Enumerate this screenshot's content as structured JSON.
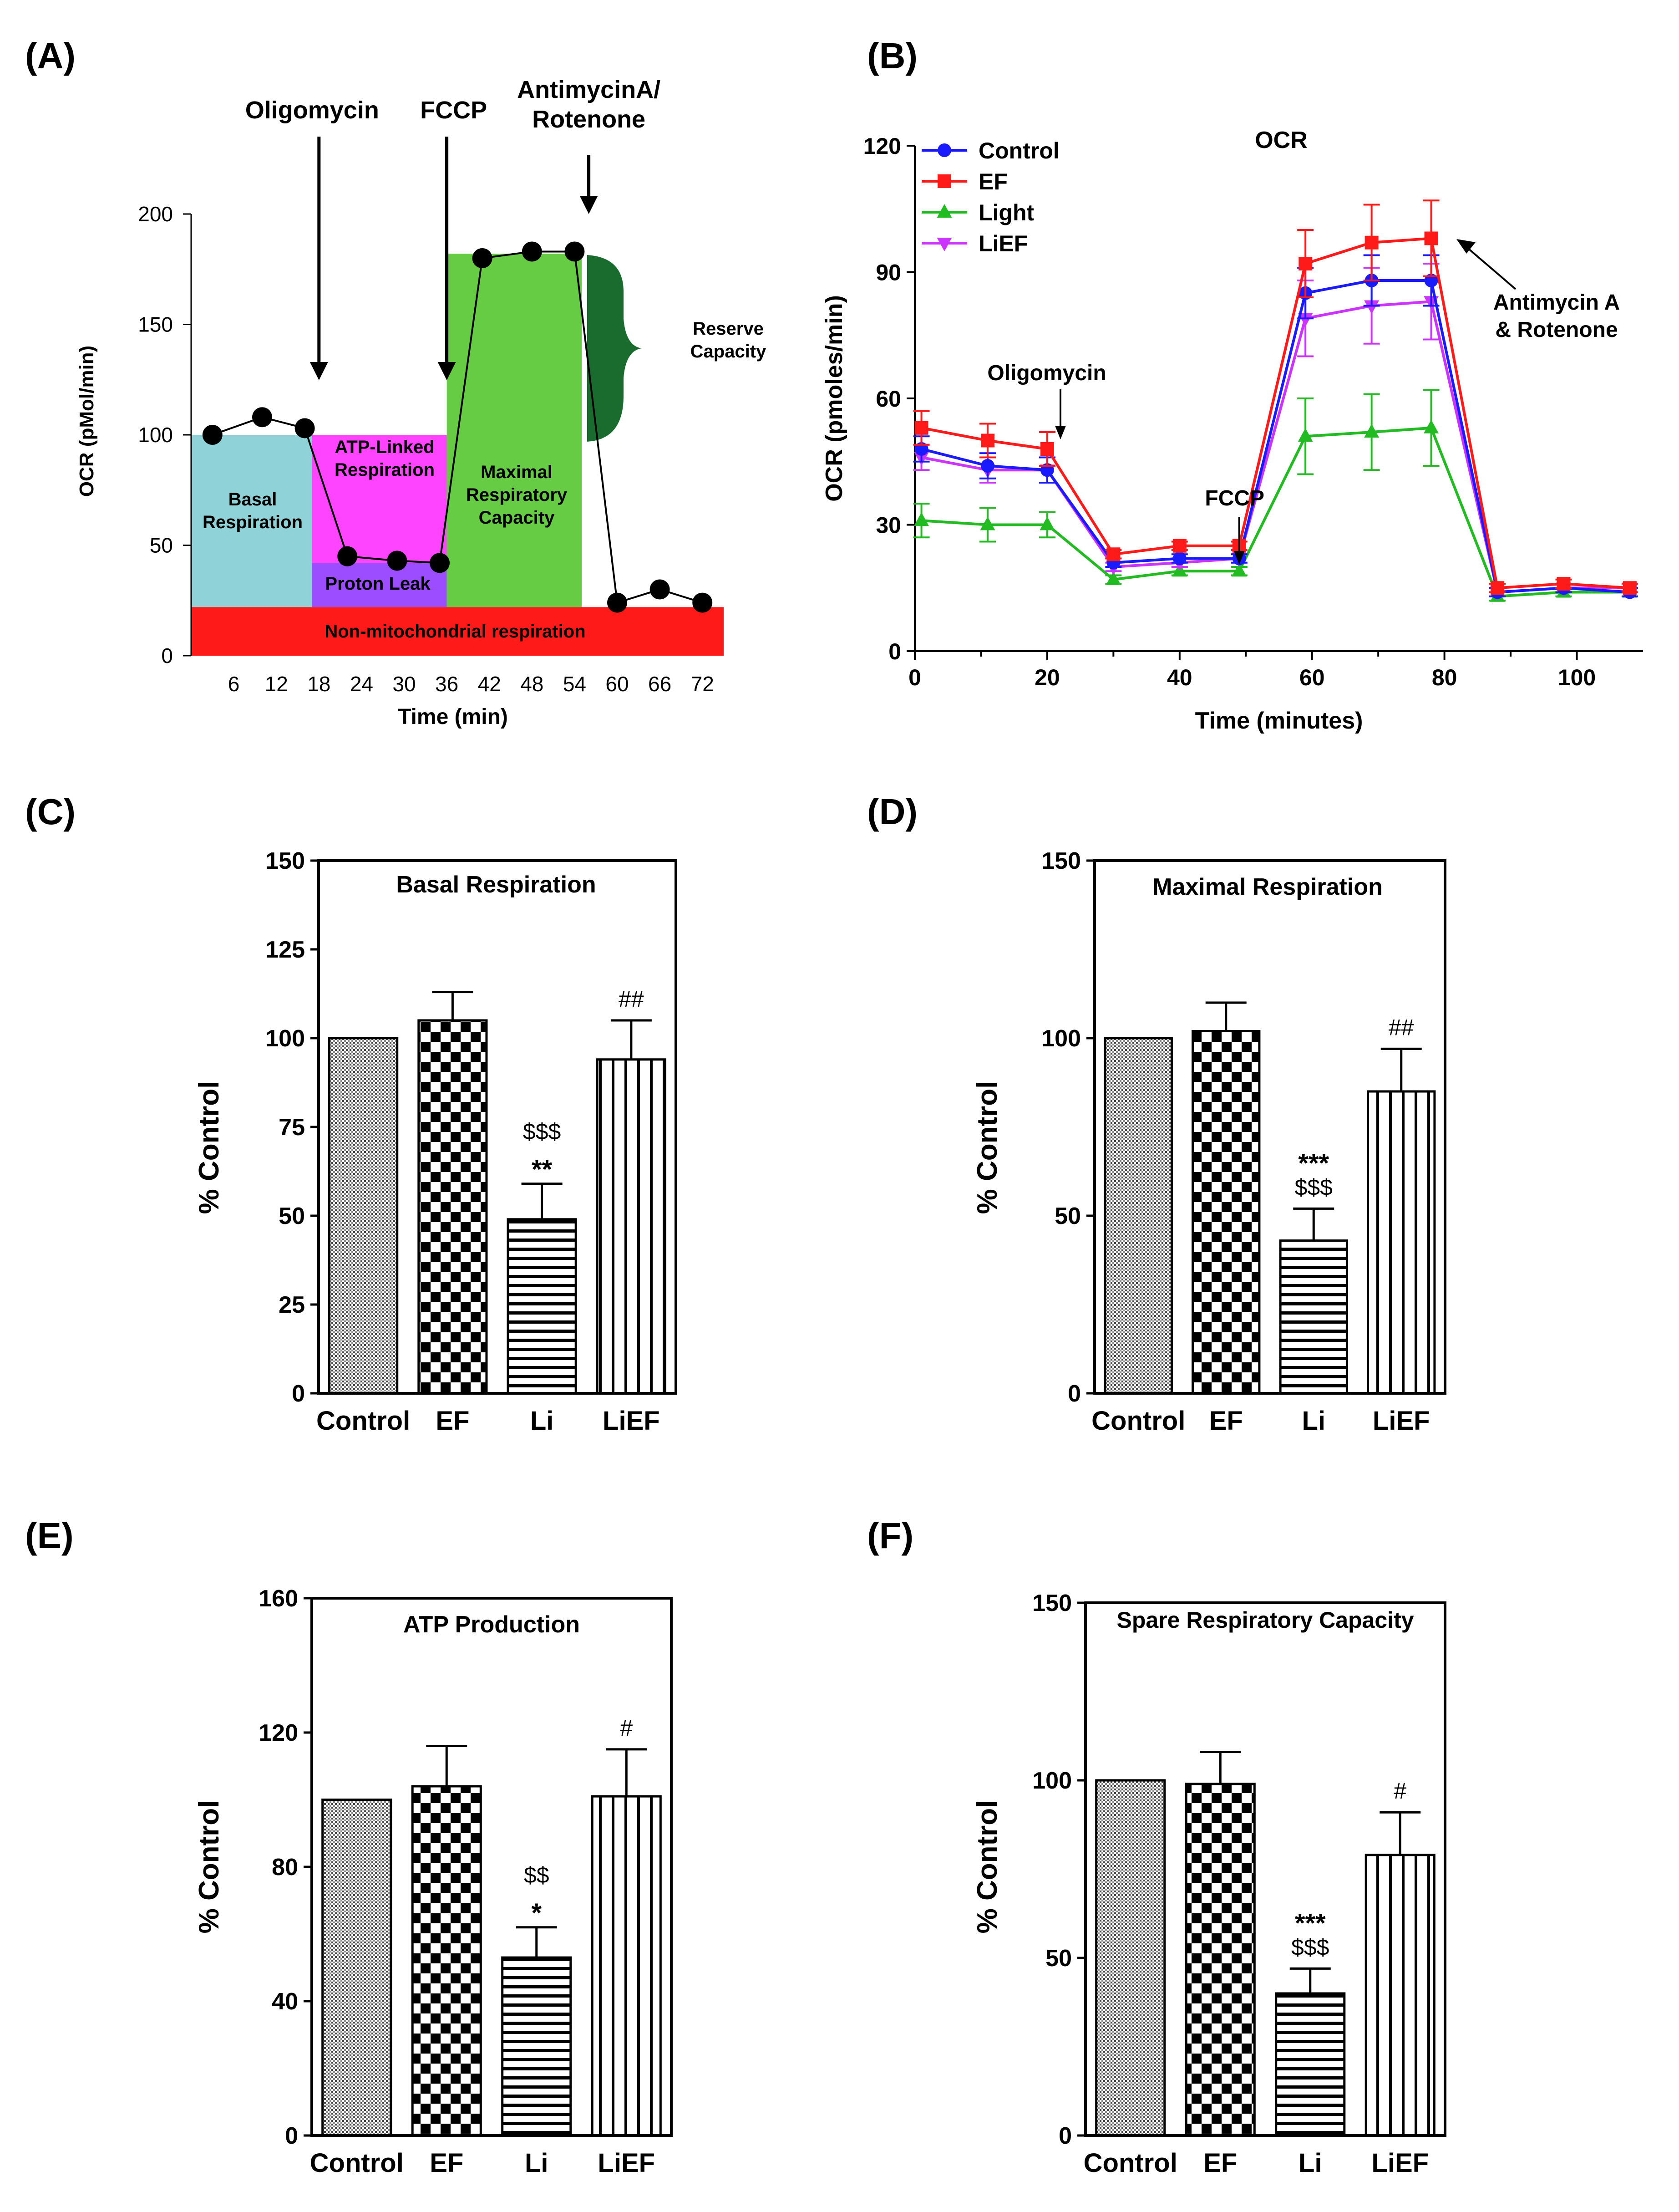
{
  "panels": {
    "A": {
      "label": "(A)"
    },
    "B": {
      "label": "(B)"
    },
    "C": {
      "label": "(C)"
    },
    "D": {
      "label": "(D)"
    },
    "E": {
      "label": "(E)"
    },
    "F": {
      "label": "(F)"
    }
  },
  "colors": {
    "basal": "#8fd3d8",
    "atp_linked": "#ff44ff",
    "proton_leak": "#9b4dff",
    "maximal": "#66cc44",
    "reserve": "#1a6b2e",
    "non_mito": "#ff1a1a",
    "control": "#1a1aff",
    "ef": "#ff1a1a",
    "light": "#22bb22",
    "lief": "#cc33ff"
  },
  "chart_data": [
    {
      "panel": "A",
      "type": "line",
      "title": "",
      "xlabel": "Time (min)",
      "ylabel": "OCR (pMol/min)",
      "xlim": [
        0,
        75
      ],
      "ylim": [
        0,
        200
      ],
      "xticks": [
        6,
        12,
        18,
        24,
        30,
        36,
        42,
        48,
        54,
        60,
        66,
        72
      ],
      "yticks": [
        0,
        50,
        100,
        150,
        200
      ],
      "x": [
        3,
        10,
        16,
        22,
        29,
        35,
        41,
        48,
        54,
        60,
        66,
        72
      ],
      "y": [
        100,
        108,
        103,
        45,
        43,
        42,
        180,
        183,
        183,
        24,
        30,
        24
      ],
      "regions": [
        {
          "name": "basal",
          "label": "Basal Respiration",
          "x": [
            0,
            17
          ],
          "y": [
            22,
            100
          ]
        },
        {
          "name": "atp_linked",
          "label": "ATP-Linked Respiration",
          "x": [
            17,
            36
          ],
          "y": [
            42,
            100
          ]
        },
        {
          "name": "proton_leak",
          "label": "Proton Leak",
          "x": [
            17,
            36
          ],
          "y": [
            22,
            42
          ]
        },
        {
          "name": "maximal",
          "label": "Maximal Respiratory Capacity",
          "x": [
            36,
            55
          ],
          "y": [
            22,
            182
          ]
        },
        {
          "name": "non_mito",
          "label": "Non-mitochondrial respiration",
          "x": [
            0,
            75
          ],
          "y": [
            0,
            22
          ]
        }
      ],
      "reserve_label": "Reserve Capacity",
      "annotations": [
        {
          "label": "Oligomycin",
          "x": 18
        },
        {
          "label": "FCCP",
          "x": 36
        },
        {
          "label": "AntimycinA/",
          "label2": "Rotenone",
          "x": 56
        }
      ]
    },
    {
      "panel": "B",
      "type": "line",
      "title": "OCR",
      "xlabel": "Time (minutes)",
      "ylabel": "OCR (pmoles/min)",
      "xlim": [
        0,
        110
      ],
      "ylim": [
        0,
        120
      ],
      "xticks": [
        0,
        20,
        40,
        60,
        80,
        100
      ],
      "yticks": [
        0,
        30,
        60,
        90,
        120
      ],
      "x": [
        1,
        11,
        20,
        30,
        40,
        49,
        59,
        69,
        78,
        88,
        98,
        108
      ],
      "series": [
        {
          "name": "Control",
          "marker": "circle",
          "values": [
            48,
            44,
            43,
            21,
            22,
            22,
            85,
            88,
            88,
            14,
            15,
            14
          ],
          "errors": [
            3,
            3,
            3,
            1,
            1,
            1,
            6,
            6,
            6,
            1,
            1,
            1
          ]
        },
        {
          "name": "EF",
          "marker": "square",
          "values": [
            53,
            50,
            48,
            23,
            25,
            25,
            92,
            97,
            98,
            15,
            16,
            15
          ],
          "errors": [
            4,
            4,
            4,
            1,
            1,
            1,
            8,
            9,
            9,
            1,
            1,
            1
          ]
        },
        {
          "name": "Light",
          "marker": "triangle-up",
          "values": [
            31,
            30,
            30,
            17,
            19,
            19,
            51,
            52,
            53,
            13,
            14,
            14
          ],
          "errors": [
            4,
            4,
            3,
            1,
            1,
            1,
            9,
            9,
            9,
            1,
            1,
            1
          ]
        },
        {
          "name": "LiEF",
          "marker": "triangle-down",
          "values": [
            46,
            43,
            43,
            20,
            21,
            22,
            79,
            82,
            83,
            14,
            15,
            15
          ],
          "errors": [
            3,
            3,
            3,
            1,
            1,
            1,
            9,
            9,
            9,
            1,
            1,
            1
          ]
        }
      ],
      "annotations": [
        {
          "label": "Oligomycin",
          "x": 22
        },
        {
          "label": "FCCP",
          "x": 49
        },
        {
          "label": "Antimycin A",
          "label2": "& Rotenone",
          "x": 79
        }
      ]
    },
    {
      "panel": "C",
      "type": "bar",
      "title": "Basal Respiration",
      "xlabel": "",
      "ylabel": "% Control",
      "ylim": [
        0,
        150
      ],
      "yticks": [
        0,
        25,
        50,
        75,
        100,
        125,
        150
      ],
      "categories": [
        "Control",
        "EF",
        "Li",
        "LiEF"
      ],
      "values": [
        100,
        105,
        49,
        94
      ],
      "errors": [
        0,
        8,
        10,
        11
      ],
      "annotations": [
        [],
        [],
        [
          "$$$",
          "**"
        ],
        [
          "##"
        ]
      ]
    },
    {
      "panel": "D",
      "type": "bar",
      "title": "Maximal Respiration",
      "xlabel": "",
      "ylabel": "% Control",
      "ylim": [
        0,
        150
      ],
      "yticks": [
        0,
        50,
        100,
        150
      ],
      "categories": [
        "Control",
        "EF",
        "Li",
        "LiEF"
      ],
      "values": [
        100,
        102,
        43,
        85
      ],
      "errors": [
        0,
        8,
        9,
        12
      ],
      "annotations": [
        [],
        [],
        [
          "***",
          "$$$"
        ],
        [
          "##"
        ]
      ]
    },
    {
      "panel": "E",
      "type": "bar",
      "title": "ATP Production",
      "xlabel": "",
      "ylabel": "% Control",
      "ylim": [
        0,
        160
      ],
      "yticks": [
        0,
        40,
        80,
        120,
        160
      ],
      "categories": [
        "Control",
        "EF",
        "Li",
        "LiEF"
      ],
      "values": [
        100,
        104,
        53,
        101
      ],
      "errors": [
        0,
        12,
        9,
        14
      ],
      "annotations": [
        [],
        [],
        [
          "$$",
          "*"
        ],
        [
          "#"
        ]
      ]
    },
    {
      "panel": "F",
      "type": "bar",
      "title": "Spare Respiratory Capacity",
      "xlabel": "",
      "ylabel": "% Control",
      "ylim": [
        0,
        150
      ],
      "yticks": [
        0,
        50,
        100,
        150
      ],
      "categories": [
        "Control",
        "EF",
        "Li",
        "LiEF"
      ],
      "values": [
        100,
        99,
        40,
        79
      ],
      "errors": [
        0,
        9,
        7,
        12
      ],
      "annotations": [
        [],
        [],
        [
          "***",
          "$$$"
        ],
        [
          "#"
        ]
      ]
    }
  ]
}
